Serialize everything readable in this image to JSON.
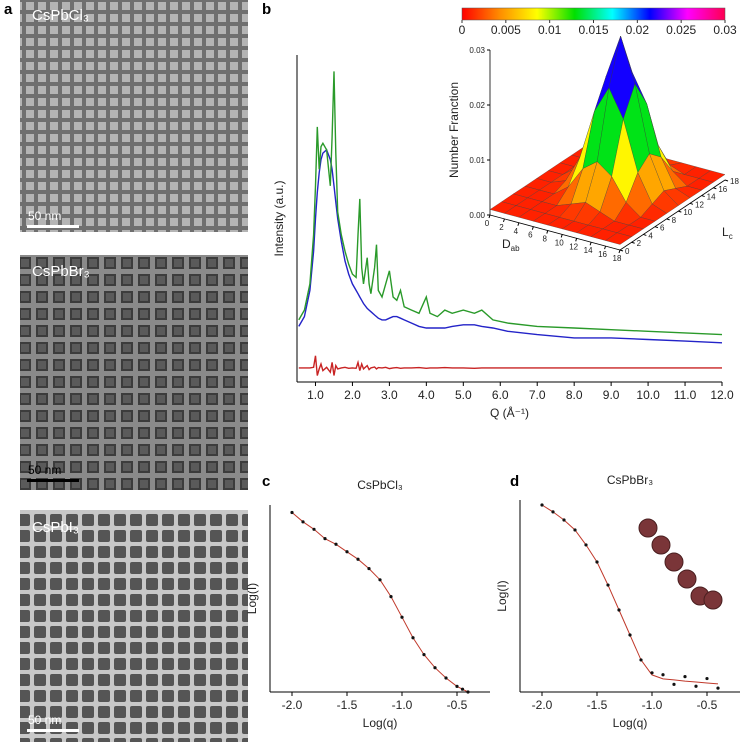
{
  "panels": {
    "a": "a",
    "b": "b",
    "c": "c",
    "d": "d"
  },
  "images": [
    {
      "label": "CsPbCl₃",
      "scale": "50 nm"
    },
    {
      "label": "CsPbBr₃",
      "scale": "50 nm"
    },
    {
      "label": "CsPbI₃",
      "scale": "50 nm"
    }
  ],
  "chart_data": [
    {
      "type": "line",
      "xlabel": "Q (Å⁻¹)",
      "ylabel": "Intensity (a.u.)",
      "xlim": [
        0.5,
        12.0
      ],
      "ylim": [
        0,
        100
      ],
      "xticks": [
        {
          "value": 1,
          "label": "1.0"
        },
        {
          "value": 2,
          "label": "2.0"
        },
        {
          "value": 3,
          "label": "3.0"
        },
        {
          "value": 4,
          "label": "4.0"
        },
        {
          "value": 5,
          "label": "5.0"
        },
        {
          "value": 6,
          "label": "6.0"
        },
        {
          "value": 7,
          "label": "7.0"
        },
        {
          "value": 8,
          "label": "8.0"
        },
        {
          "value": 9,
          "label": "9.0"
        },
        {
          "value": 10,
          "label": "10.0"
        },
        {
          "value": 11,
          "label": "11.0"
        },
        {
          "value": 12,
          "label": "12.0"
        }
      ],
      "x": [
        0.55,
        0.7,
        0.85,
        0.95,
        1.0,
        1.05,
        1.1,
        1.15,
        1.2,
        1.3,
        1.4,
        1.45,
        1.5,
        1.55,
        1.6,
        1.7,
        1.8,
        1.9,
        2.0,
        2.1,
        2.15,
        2.2,
        2.25,
        2.3,
        2.4,
        2.45,
        2.5,
        2.6,
        2.65,
        2.7,
        2.8,
        2.9,
        3.0,
        3.1,
        3.2,
        3.3,
        3.4,
        3.6,
        3.8,
        4.0,
        4.1,
        4.3,
        4.5,
        4.7,
        5.0,
        5.3,
        5.5,
        5.8,
        6.2,
        7.0,
        8.0,
        9.0,
        10.0,
        11.0,
        12.0
      ],
      "series": [
        {
          "color": "#2323c8",
          "values": [
            17,
            20,
            28,
            40,
            50,
            58,
            64,
            68,
            70,
            71,
            68,
            65,
            60,
            55,
            50,
            43,
            37,
            33,
            30,
            28,
            27,
            26,
            25,
            24,
            22.5,
            22,
            21.5,
            20.5,
            20,
            19.5,
            19,
            19,
            19.5,
            20,
            20,
            19.5,
            19,
            18,
            17,
            16.5,
            16.5,
            16.5,
            16.5,
            17,
            17.5,
            17.5,
            17,
            16.5,
            15.5,
            14.5,
            13.5,
            13.5,
            13,
            12.5,
            12
          ]
        },
        {
          "color": "#2a9a2a",
          "values": [
            19,
            22,
            30,
            45,
            60,
            78,
            65,
            72,
            73,
            71,
            60,
            75,
            95,
            70,
            52,
            45,
            40,
            36,
            33,
            32,
            45,
            56,
            35,
            30,
            38,
            30,
            27,
            35,
            42,
            28,
            26,
            30,
            34,
            26,
            25,
            28,
            23,
            22,
            21,
            26,
            21,
            20,
            22,
            21,
            22,
            21,
            22,
            19,
            18,
            17,
            16.5,
            16,
            15.5,
            15,
            14.5
          ]
        },
        {
          "color": "#c82323",
          "values": [
            4.3,
            4.3,
            4.3,
            4.5,
            8,
            2,
            4,
            5.5,
            3.5,
            4.5,
            3,
            6,
            2,
            5,
            4,
            4.3,
            4.5,
            4.2,
            4.3,
            4.2,
            6,
            3.5,
            5.5,
            4,
            5,
            3.8,
            4.3,
            4.6,
            4,
            4.4,
            4.3,
            4.5,
            4.1,
            4.3,
            4.4,
            4.2,
            4.3,
            4.3,
            4.4,
            4.2,
            4.3,
            4.3,
            4.4,
            4.3,
            4.3,
            4.2,
            4.3,
            4.3,
            4.3,
            4.3,
            4.3,
            4.3,
            4.3,
            4.3,
            4.3
          ]
        }
      ]
    },
    {
      "type": "surface",
      "zlabel": "Number Franction",
      "xlabel": "D",
      "xlabel_sub": "ab",
      "ylabel": "L",
      "ylabel_sub": "c",
      "xlim": [
        0,
        18
      ],
      "ylim": [
        0,
        18
      ],
      "zlim": [
        0,
        0.03
      ],
      "xticks": [
        0,
        2,
        4,
        6,
        8,
        10,
        12,
        14,
        16,
        18
      ],
      "yticks": [
        0,
        2,
        4,
        6,
        8,
        10,
        12,
        14,
        16,
        18
      ],
      "zticks": [
        {
          "value": 0,
          "label": "0.00"
        },
        {
          "value": 0.01,
          "label": "0.01"
        },
        {
          "value": 0.02,
          "label": "0.02"
        },
        {
          "value": 0.03,
          "label": "0.03"
        }
      ],
      "x": [
        0,
        2,
        4,
        6,
        8,
        10,
        12,
        14,
        16,
        18
      ],
      "y": [
        0,
        2,
        4,
        6,
        8,
        10,
        12,
        14,
        16,
        18
      ],
      "z": [
        [
          0.001,
          0.001,
          0.001,
          0.001,
          0.001,
          0.001,
          0.001,
          0.001,
          0.001,
          0.001
        ],
        [
          0.001,
          0.001,
          0.001,
          0.001,
          0.001,
          0.001,
          0.001,
          0.001,
          0.001,
          0.001
        ],
        [
          0.001,
          0.001,
          0.001,
          0.001,
          0.002,
          0.003,
          0.002,
          0.001,
          0.001,
          0.001
        ],
        [
          0.001,
          0.001,
          0.001,
          0.003,
          0.007,
          0.009,
          0.007,
          0.003,
          0.001,
          0.001
        ],
        [
          0.001,
          0.001,
          0.002,
          0.007,
          0.016,
          0.021,
          0.016,
          0.007,
          0.002,
          0.001
        ],
        [
          0.001,
          0.001,
          0.003,
          0.009,
          0.021,
          0.029,
          0.021,
          0.009,
          0.003,
          0.001
        ],
        [
          0.001,
          0.001,
          0.002,
          0.007,
          0.016,
          0.021,
          0.016,
          0.007,
          0.002,
          0.001
        ],
        [
          0.001,
          0.001,
          0.001,
          0.003,
          0.007,
          0.009,
          0.007,
          0.003,
          0.001,
          0.001
        ],
        [
          0.001,
          0.001,
          0.001,
          0.001,
          0.002,
          0.003,
          0.002,
          0.001,
          0.001,
          0.001
        ],
        [
          0.001,
          0.001,
          0.001,
          0.001,
          0.001,
          0.001,
          0.001,
          0.001,
          0.001,
          0.001
        ]
      ],
      "clim": [
        0,
        0.03
      ],
      "colorbar_ticks": [
        0,
        0.005,
        0.01,
        0.015,
        0.02,
        0.025,
        0.03
      ],
      "colormap": [
        "#ff0000",
        "#ff8c00",
        "#ffff00",
        "#00e000",
        "#00ffff",
        "#0000ff",
        "#ff00ff",
        "#ff0050"
      ]
    },
    {
      "type": "scatter",
      "title": "CsPbCl₃",
      "xlabel": "Log(q)",
      "ylabel": "Log(I)",
      "xlim": [
        -2.2,
        -0.2
      ],
      "ylim": [
        0,
        100
      ],
      "xticks": [
        {
          "value": -2,
          "label": "-2.0"
        },
        {
          "value": -1.5,
          "label": "-1.5"
        },
        {
          "value": -1,
          "label": "-1.0"
        },
        {
          "value": -0.5,
          "label": "-0.5"
        }
      ],
      "x": [
        -2.0,
        -1.9,
        -1.8,
        -1.7,
        -1.6,
        -1.5,
        -1.4,
        -1.3,
        -1.2,
        -1.1,
        -1.0,
        -0.9,
        -0.8,
        -0.7,
        -0.6,
        -0.5,
        -0.45,
        -0.4
      ],
      "series": [
        {
          "mode": "line",
          "color": "#c0392b",
          "values": [
            96,
            91,
            87,
            82,
            79,
            75,
            71,
            66,
            60,
            51,
            40,
            29,
            20,
            13,
            7.5,
            3,
            1.5,
            0
          ]
        },
        {
          "mode": "markers",
          "color": "#111111",
          "values": [
            96,
            91,
            87,
            82,
            79,
            75,
            71,
            66,
            60,
            51,
            40,
            29,
            20,
            13,
            7.5,
            3,
            1.5,
            0
          ]
        }
      ]
    },
    {
      "type": "scatter",
      "title": "CsPbBr₃",
      "xlabel": "Log(q)",
      "ylabel": "Log(I)",
      "xlim": [
        -2.2,
        -0.2
      ],
      "ylim": [
        0,
        100
      ],
      "xticks": [
        {
          "value": -2,
          "label": "-2.0"
        },
        {
          "value": -1.5,
          "label": "-1.5"
        },
        {
          "value": -1,
          "label": "-1.0"
        },
        {
          "value": -0.5,
          "label": "-0.5"
        }
      ],
      "x": [
        -2.0,
        -1.9,
        -1.8,
        -1.7,
        -1.6,
        -1.5,
        -1.4,
        -1.3,
        -1.2,
        -1.1,
        -1.0,
        -0.9,
        -0.8,
        -0.7,
        -0.6,
        -0.5,
        -0.4
      ],
      "series": [
        {
          "mode": "line",
          "color": "#c0392b",
          "values": [
            97.4,
            93.8,
            89.6,
            84.4,
            76.6,
            67.7,
            55.7,
            42.7,
            29.7,
            16.7,
            8.9,
            6.8,
            6.3,
            5.7,
            5.2,
            4.7,
            4.2
          ]
        },
        {
          "mode": "markers",
          "color": "#111111",
          "values": [
            97.4,
            93.8,
            89.6,
            84.4,
            76.6,
            67.7,
            55.7,
            42.7,
            29.7,
            16.7,
            10,
            9,
            4,
            8,
            3,
            7,
            2
          ]
        }
      ]
    }
  ]
}
